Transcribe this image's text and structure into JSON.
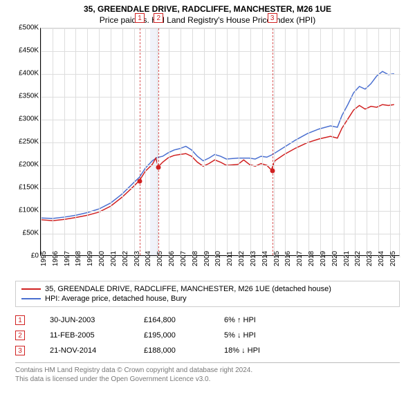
{
  "title": "35, GREENDALE DRIVE, RADCLIFFE, MANCHESTER, M26 1UE",
  "subtitle": "Price paid vs. HM Land Registry's House Price Index (HPI)",
  "chart": {
    "type": "line",
    "xlim": [
      1995,
      2025.9
    ],
    "ylim": [
      0,
      500000
    ],
    "ytick_step": 50000,
    "yticks": [
      {
        "v": 0,
        "l": "£0"
      },
      {
        "v": 50000,
        "l": "£50K"
      },
      {
        "v": 100000,
        "l": "£100K"
      },
      {
        "v": 150000,
        "l": "£150K"
      },
      {
        "v": 200000,
        "l": "£200K"
      },
      {
        "v": 250000,
        "l": "£250K"
      },
      {
        "v": 300000,
        "l": "£300K"
      },
      {
        "v": 350000,
        "l": "£350K"
      },
      {
        "v": 400000,
        "l": "£400K"
      },
      {
        "v": 450000,
        "l": "£450K"
      },
      {
        "v": 500000,
        "l": "£500K"
      }
    ],
    "xticks": [
      1995,
      1996,
      1997,
      1998,
      1999,
      2000,
      2001,
      2002,
      2003,
      2004,
      2005,
      2006,
      2007,
      2008,
      2009,
      2010,
      2011,
      2012,
      2013,
      2014,
      2015,
      2016,
      2017,
      2018,
      2019,
      2020,
      2021,
      2022,
      2023,
      2024,
      2025
    ],
    "background_color": "#ffffff",
    "grid_color": "#dddddd",
    "colors": {
      "property": "#d02020",
      "hpi": "#4a6fd0"
    },
    "line_width": 1.5,
    "band": {
      "start": 2004.4,
      "end": 2005.1,
      "color": "#e6e9f5"
    },
    "markers": [
      {
        "n": "1",
        "year": 2003.5,
        "value": 164800
      },
      {
        "n": "2",
        "year": 2005.12,
        "value": 195000
      },
      {
        "n": "3",
        "year": 2014.89,
        "value": 188000
      }
    ],
    "series": {
      "property": [
        [
          1995,
          78000
        ],
        [
          1996,
          76000
        ],
        [
          1997,
          79000
        ],
        [
          1998,
          83000
        ],
        [
          1999,
          88000
        ],
        [
          2000,
          95000
        ],
        [
          2001,
          108000
        ],
        [
          2002,
          128000
        ],
        [
          2003,
          152000
        ],
        [
          2003.5,
          164800
        ],
        [
          2004,
          185000
        ],
        [
          2004.6,
          200000
        ],
        [
          2004.9,
          214000
        ],
        [
          2005.12,
          195000
        ],
        [
          2005.5,
          205000
        ],
        [
          2006,
          215000
        ],
        [
          2006.5,
          220000
        ],
        [
          2007,
          222000
        ],
        [
          2007.5,
          224000
        ],
        [
          2008,
          218000
        ],
        [
          2008.5,
          205000
        ],
        [
          2009,
          196000
        ],
        [
          2009.5,
          202000
        ],
        [
          2010,
          210000
        ],
        [
          2010.5,
          205000
        ],
        [
          2011,
          198000
        ],
        [
          2012,
          200000
        ],
        [
          2012.5,
          210000
        ],
        [
          2013,
          200000
        ],
        [
          2013.5,
          196000
        ],
        [
          2014,
          202000
        ],
        [
          2014.5,
          198000
        ],
        [
          2014.89,
          188000
        ],
        [
          2015.2,
          208000
        ],
        [
          2016,
          222000
        ],
        [
          2017,
          236000
        ],
        [
          2018,
          248000
        ],
        [
          2019,
          256000
        ],
        [
          2020,
          262000
        ],
        [
          2020.6,
          258000
        ],
        [
          2021,
          280000
        ],
        [
          2021.5,
          300000
        ],
        [
          2022,
          320000
        ],
        [
          2022.5,
          330000
        ],
        [
          2023,
          322000
        ],
        [
          2023.5,
          328000
        ],
        [
          2024,
          326000
        ],
        [
          2024.5,
          332000
        ],
        [
          2025,
          330000
        ],
        [
          2025.5,
          332000
        ]
      ],
      "hpi": [
        [
          1995,
          82000
        ],
        [
          1996,
          81000
        ],
        [
          1997,
          84000
        ],
        [
          1998,
          88000
        ],
        [
          1999,
          94000
        ],
        [
          2000,
          102000
        ],
        [
          2001,
          115000
        ],
        [
          2002,
          135000
        ],
        [
          2003,
          160000
        ],
        [
          2003.5,
          172000
        ],
        [
          2004,
          192000
        ],
        [
          2004.6,
          208000
        ],
        [
          2005,
          215000
        ],
        [
          2005.5,
          218000
        ],
        [
          2006,
          226000
        ],
        [
          2006.5,
          232000
        ],
        [
          2007,
          235000
        ],
        [
          2007.5,
          240000
        ],
        [
          2008,
          232000
        ],
        [
          2008.5,
          218000
        ],
        [
          2009,
          208000
        ],
        [
          2009.5,
          214000
        ],
        [
          2010,
          222000
        ],
        [
          2010.5,
          218000
        ],
        [
          2011,
          212000
        ],
        [
          2012,
          214000
        ],
        [
          2013,
          214000
        ],
        [
          2013.5,
          212000
        ],
        [
          2014,
          218000
        ],
        [
          2014.5,
          216000
        ],
        [
          2015,
          222000
        ],
        [
          2016,
          238000
        ],
        [
          2017,
          254000
        ],
        [
          2018,
          268000
        ],
        [
          2019,
          278000
        ],
        [
          2020,
          285000
        ],
        [
          2020.6,
          282000
        ],
        [
          2021,
          308000
        ],
        [
          2021.5,
          332000
        ],
        [
          2022,
          358000
        ],
        [
          2022.5,
          372000
        ],
        [
          2023,
          366000
        ],
        [
          2023.5,
          378000
        ],
        [
          2024,
          395000
        ],
        [
          2024.5,
          405000
        ],
        [
          2025,
          398000
        ],
        [
          2025.5,
          400000
        ]
      ]
    }
  },
  "legend": {
    "items": [
      {
        "label": "35, GREENDALE DRIVE, RADCLIFFE, MANCHESTER, M26 1UE (detached house)",
        "color": "#d02020"
      },
      {
        "label": "HPI: Average price, detached house, Bury",
        "color": "#4a6fd0"
      }
    ]
  },
  "transactions": [
    {
      "n": "1",
      "date": "30-JUN-2003",
      "price": "£164,800",
      "diff": "6% ↑ HPI"
    },
    {
      "n": "2",
      "date": "11-FEB-2005",
      "price": "£195,000",
      "diff": "5% ↓ HPI"
    },
    {
      "n": "3",
      "date": "21-NOV-2014",
      "price": "£188,000",
      "diff": "18% ↓ HPI"
    }
  ],
  "boilerplate": {
    "line1": "Contains HM Land Registry data © Crown copyright and database right 2024.",
    "line2": "This data is licensed under the Open Government Licence v3.0."
  }
}
